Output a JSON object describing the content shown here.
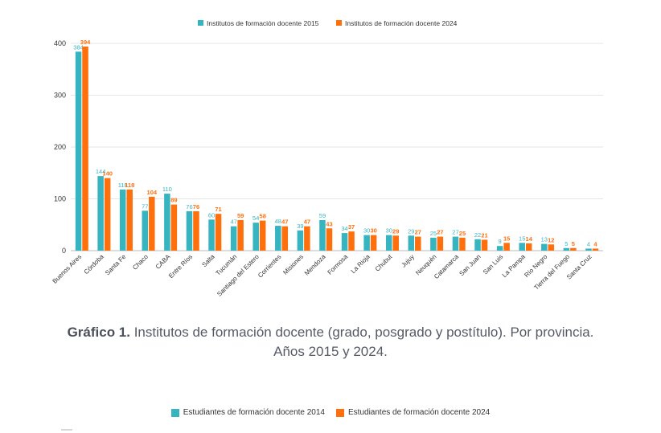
{
  "chart_data": {
    "type": "bar",
    "legend": {
      "position": "top",
      "items": [
        {
          "label": "Institutos de formación docente 2015",
          "color": "#36b5c1"
        },
        {
          "label": "Institutos de formación docente 2024",
          "color": "#ff6f0c"
        }
      ]
    },
    "categories": [
      "Buenos Aires",
      "Córdoba",
      "Santa Fe",
      "Chaco",
      "CABA",
      "Entre Ríos",
      "Salta",
      "Tucumán",
      "Santiago del Estero",
      "Corrientes",
      "Misiones",
      "Mendoza",
      "Formosa",
      "La Rioja",
      "Chubut",
      "Jujuy",
      "Neuquén",
      "Catamarca",
      "San Juan",
      "San Luis",
      "La Pampa",
      "Río Negro",
      "Tierra del Fuego",
      "Santa Cruz"
    ],
    "series": [
      {
        "name": "Institutos de formación docente 2015",
        "color": "#36b5c1",
        "values": [
          384,
          144,
          118,
          77,
          110,
          76,
          60,
          47,
          54,
          48,
          39,
          59,
          34,
          30,
          30,
          29,
          25,
          27,
          22,
          9,
          15,
          13,
          5,
          4
        ],
        "labels": [
          "384",
          "144",
          "118",
          "77",
          "110",
          "76",
          "60",
          "47",
          "54",
          "48",
          "39",
          "59",
          "34",
          "30",
          "30",
          "29",
          "25",
          "27",
          "22",
          "9",
          "15",
          "13",
          "5",
          "4"
        ]
      },
      {
        "name": "Institutos de formación docente 2024",
        "color": "#ff6f0c",
        "values": [
          394,
          140,
          118,
          104,
          89,
          76,
          71,
          59,
          58,
          47,
          47,
          43,
          37,
          30,
          29,
          27,
          27,
          25,
          21,
          15,
          14,
          12,
          5,
          4
        ],
        "labels": [
          "394",
          "140",
          "118",
          "104",
          "89",
          "76",
          "71",
          "59",
          "58",
          "47",
          "47",
          "43",
          "37",
          "30",
          "29",
          "27",
          "27",
          "25",
          "21",
          "15",
          "14",
          "12",
          "5",
          "4"
        ]
      }
    ],
    "yticks": [
      "0",
      "100",
      "200",
      "300",
      "400"
    ],
    "ylim": [
      0,
      420
    ],
    "grid": true
  },
  "caption": {
    "bold": "Gráfico 1.",
    "line1": " Institutos de formación docente (grado, posgrado y postítulo). Por provincia.",
    "line2": "Años 2015 y 2024."
  },
  "second_chart_legend": [
    {
      "label": "Estudiantes de formación docente 2014",
      "color": "#36b5c1"
    },
    {
      "label": "Estudiantes de formación docente 2024",
      "color": "#ff6f0c"
    }
  ]
}
